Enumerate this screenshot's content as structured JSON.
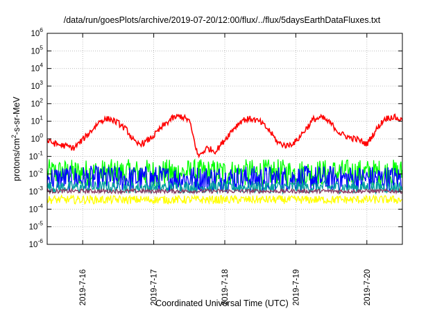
{
  "chart_data": {
    "type": "line",
    "title": "/data/run/goesPlots/archive/2019-07-20/12:00/flux/../flux/5daysEarthDataFluxes.txt",
    "xlabel": "Coordinated Universal Time (UTC)",
    "ylabel_pre": "protons/cm",
    "ylabel_sup": "2",
    "ylabel_post": "-s-sr-MeV",
    "yscale": "log",
    "ylim": [
      1e-06,
      1000000.0
    ],
    "y_ticks": [
      {
        "base": "10",
        "exp": "-6",
        "value": -6
      },
      {
        "base": "10",
        "exp": "-5",
        "value": -5
      },
      {
        "base": "10",
        "exp": "-4",
        "value": -4
      },
      {
        "base": "10",
        "exp": "-3",
        "value": -3
      },
      {
        "base": "10",
        "exp": "-2",
        "value": -2
      },
      {
        "base": "10",
        "exp": "-1",
        "value": -1
      },
      {
        "base": "10",
        "exp": "0",
        "value": 0
      },
      {
        "base": "10",
        "exp": "1",
        "value": 1
      },
      {
        "base": "10",
        "exp": "2",
        "value": 2
      },
      {
        "base": "10",
        "exp": "3",
        "value": 3
      },
      {
        "base": "10",
        "exp": "4",
        "value": 4
      },
      {
        "base": "10",
        "exp": "5",
        "value": 5
      },
      {
        "base": "10",
        "exp": "6",
        "value": 6
      }
    ],
    "xlim": [
      "2019-07-15 12:00",
      "2019-07-20 12:00"
    ],
    "x_ticks": [
      "2019-7-16",
      "2019-7-17",
      "2019-7-18",
      "2019-7-19",
      "2019-7-20"
    ],
    "grid": true,
    "series": [
      {
        "color": "#ff0000",
        "x": [
          "2019-07-15 12:00",
          "2019-07-15 15:00",
          "2019-07-15 18:00",
          "2019-07-15 21:00",
          "2019-07-16 00:00",
          "2019-07-16 03:00",
          "2019-07-16 06:00",
          "2019-07-16 09:00",
          "2019-07-16 12:00",
          "2019-07-16 15:00",
          "2019-07-16 18:00",
          "2019-07-16 21:00",
          "2019-07-17 00:00",
          "2019-07-17 03:00",
          "2019-07-17 06:00",
          "2019-07-17 09:00",
          "2019-07-17 12:00",
          "2019-07-17 15:00",
          "2019-07-17 18:00",
          "2019-07-17 21:00",
          "2019-07-18 00:00",
          "2019-07-18 03:00",
          "2019-07-18 06:00",
          "2019-07-18 09:00",
          "2019-07-18 12:00",
          "2019-07-18 15:00",
          "2019-07-18 18:00",
          "2019-07-18 21:00",
          "2019-07-19 00:00",
          "2019-07-19 03:00",
          "2019-07-19 06:00",
          "2019-07-19 09:00",
          "2019-07-19 12:00",
          "2019-07-19 15:00",
          "2019-07-19 18:00",
          "2019-07-19 21:00",
          "2019-07-20 00:00",
          "2019-07-20 03:00",
          "2019-07-20 06:00",
          "2019-07-20 09:00",
          "2019-07-20 12:00"
        ],
        "y": [
          0.8,
          0.5,
          0.4,
          0.3,
          0.9,
          3,
          11,
          14,
          8,
          3,
          0.5,
          0.6,
          1.5,
          5,
          14,
          20,
          11,
          0.1,
          0.3,
          0.2,
          0.9,
          4,
          12,
          14,
          9,
          3,
          0.6,
          0.4,
          0.7,
          3,
          13,
          16,
          7,
          2,
          1.2,
          0.9,
          0.5,
          3,
          14,
          18,
          11
        ]
      },
      {
        "color": "#00ff00",
        "band": [
          0.002,
          0.07
        ],
        "x": [
          "2019-07-15 12:00",
          "2019-07-20 12:00"
        ]
      },
      {
        "color": "#0000ff",
        "band": [
          0.001,
          0.03
        ],
        "x": [
          "2019-07-15 12:00",
          "2019-07-20 12:00"
        ]
      },
      {
        "color": "#00a0a0",
        "band": [
          0.0008,
          0.004
        ],
        "x": [
          "2019-07-15 12:00",
          "2019-07-20 12:00"
        ]
      },
      {
        "color": "#8b3a62",
        "band": [
          0.0008,
          0.0014
        ],
        "x": [
          "2019-07-15 12:00",
          "2019-07-20 12:00"
        ]
      },
      {
        "color": "#ffff00",
        "band": [
          0.0002,
          0.0006
        ],
        "x": [
          "2019-07-15 12:00",
          "2019-07-20 12:00"
        ]
      }
    ]
  }
}
